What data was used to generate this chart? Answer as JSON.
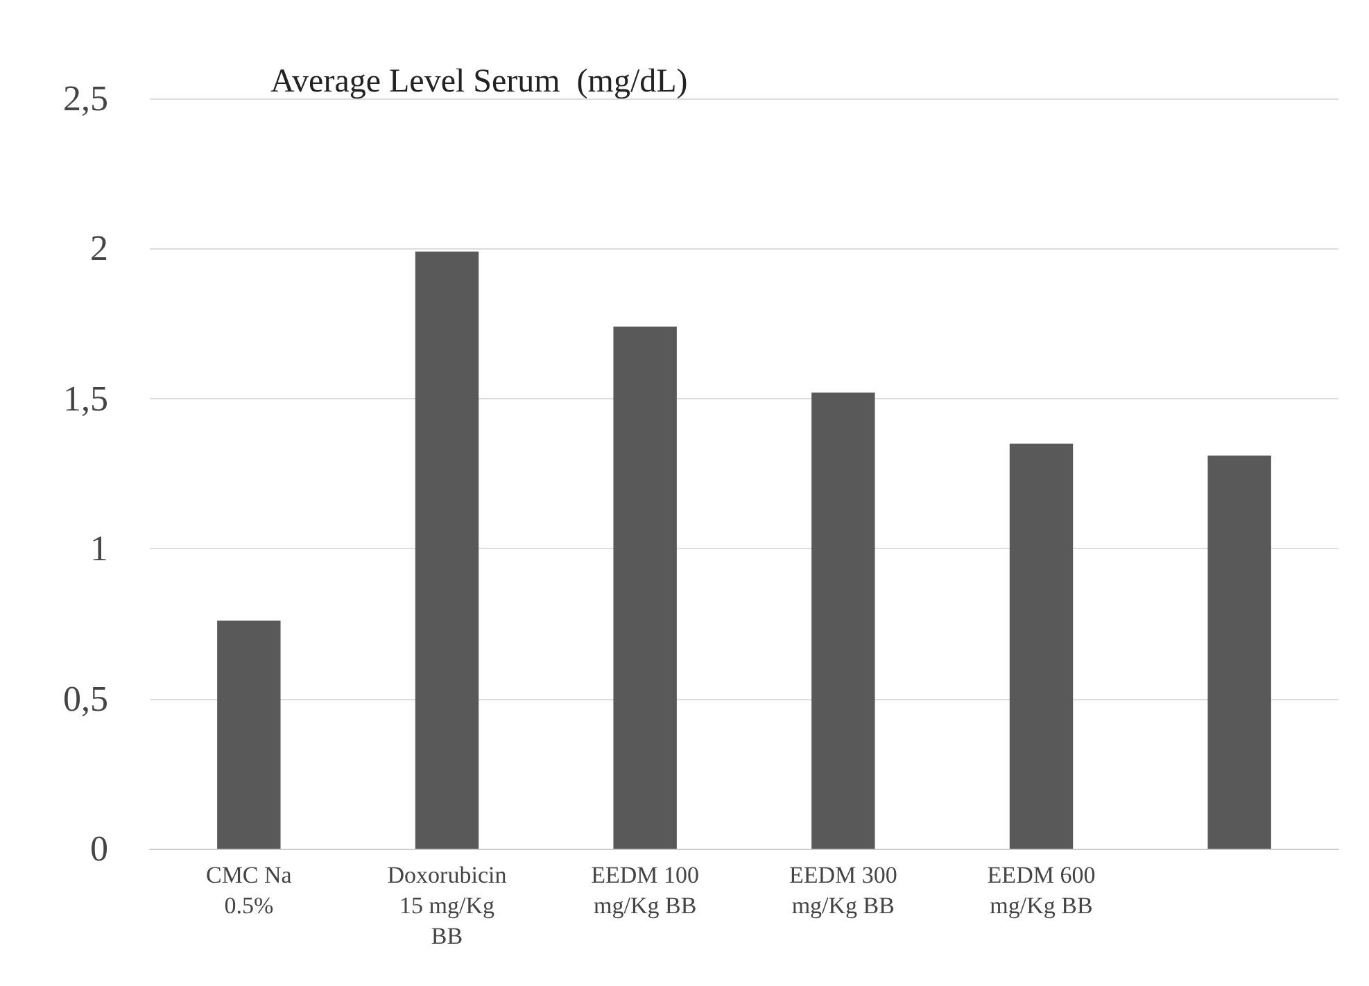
{
  "chart_data": {
    "type": "bar",
    "title": "Average Level Serum  (mg/dL)",
    "categories": [
      "CMC Na\n0.5%",
      "Doxorubicin\n15 mg/Kg\nBB",
      "EEDM 100\nmg/Kg BB",
      "EEDM 300\nmg/Kg BB",
      "EEDM 600\nmg/Kg BB",
      null
    ],
    "values": [
      0.76,
      1.99,
      1.74,
      1.52,
      1.35,
      1.31
    ],
    "color": "#595959",
    "ylim": [
      0,
      2.5
    ],
    "yticks": [
      0,
      {
        "value": 0.5,
        "label": "0,5"
      },
      1,
      {
        "value": 1.5,
        "label": "1,5"
      },
      2,
      {
        "value": 2.5,
        "label": "2,5"
      }
    ],
    "grid": "y"
  }
}
